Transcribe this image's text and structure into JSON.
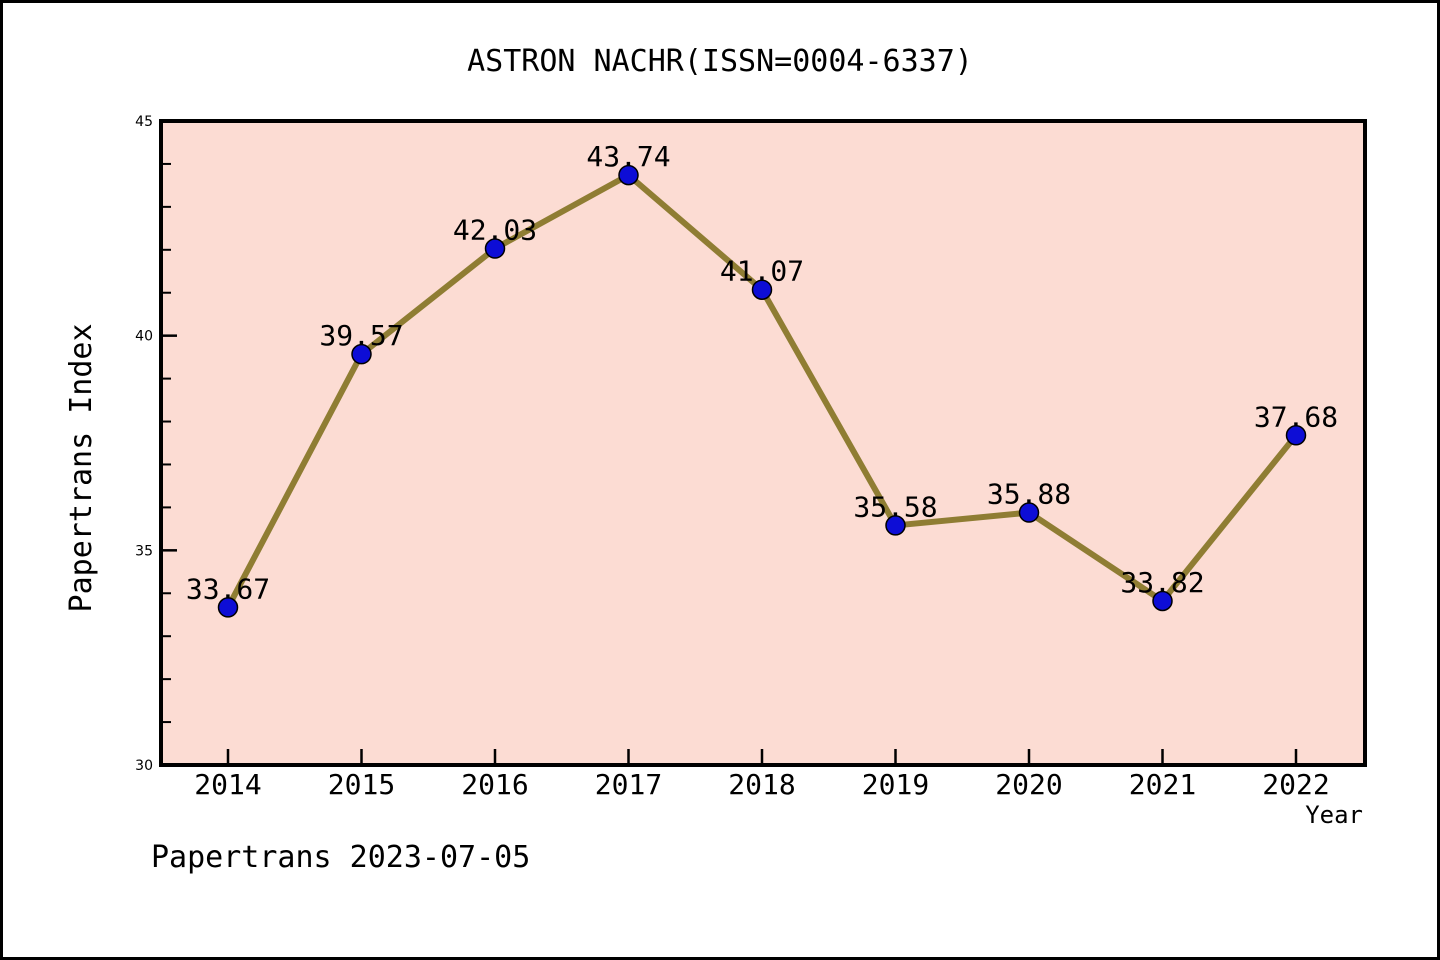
{
  "window": {
    "background": "#ffffff",
    "border_color": "#000000"
  },
  "chart_data": {
    "type": "line",
    "title": "ASTRON NACHR(ISSN=0004-6337)",
    "xlabel": "Year",
    "ylabel": "Papertrans Index",
    "categories": [
      2014,
      2015,
      2016,
      2017,
      2018,
      2019,
      2020,
      2021,
      2022
    ],
    "series": [
      {
        "name": "Papertrans Index",
        "values": [
          33.67,
          39.57,
          42.03,
          43.74,
          41.07,
          35.58,
          35.88,
          33.82,
          37.68
        ]
      }
    ],
    "point_labels": [
      "33.67",
      "39.57",
      "42.03",
      "43.74",
      "41.07",
      "35.58",
      "35.88",
      "33.82",
      "37.68"
    ],
    "ylim": [
      30,
      45
    ],
    "yticks_major": [
      30,
      35,
      40,
      45
    ],
    "ytick_minor_step": 1,
    "grid": false,
    "legend": "none",
    "colors": {
      "plot_background": "#fcdcd3",
      "line": "#8f7d33",
      "marker_fill": "#0d0dd6",
      "marker_edge": "#000000",
      "spine": "#000000",
      "text": "#000000"
    }
  },
  "footer": {
    "text": "Papertrans 2023-07-05"
  }
}
